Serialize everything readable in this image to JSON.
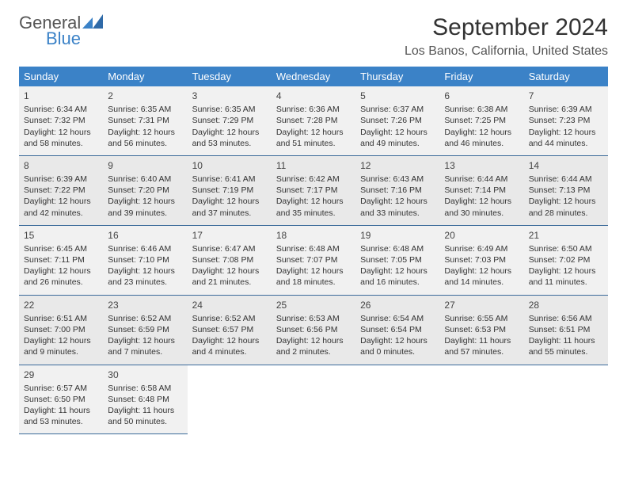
{
  "brand": {
    "top": "General",
    "bottom": "Blue",
    "mark_color": "#3b82c7"
  },
  "title": "September 2024",
  "location": "Los Banos, California, United States",
  "colors": {
    "header_bg": "#3b82c7",
    "header_text": "#ffffff",
    "row_bg_a": "#f1f1f1",
    "row_bg_b": "#e9e9e9",
    "row_border": "#3b6a9a",
    "page_bg": "#ffffff",
    "text": "#333333"
  },
  "typography": {
    "title_fontsize_pt": 22,
    "location_fontsize_pt": 12,
    "dayheader_fontsize_pt": 10,
    "cell_fontsize_pt": 8
  },
  "day_headers": [
    "Sunday",
    "Monday",
    "Tuesday",
    "Wednesday",
    "Thursday",
    "Friday",
    "Saturday"
  ],
  "weeks": [
    [
      {
        "n": "1",
        "sr": "Sunrise: 6:34 AM",
        "ss": "Sunset: 7:32 PM",
        "dl1": "Daylight: 12 hours",
        "dl2": "and 58 minutes."
      },
      {
        "n": "2",
        "sr": "Sunrise: 6:35 AM",
        "ss": "Sunset: 7:31 PM",
        "dl1": "Daylight: 12 hours",
        "dl2": "and 56 minutes."
      },
      {
        "n": "3",
        "sr": "Sunrise: 6:35 AM",
        "ss": "Sunset: 7:29 PM",
        "dl1": "Daylight: 12 hours",
        "dl2": "and 53 minutes."
      },
      {
        "n": "4",
        "sr": "Sunrise: 6:36 AM",
        "ss": "Sunset: 7:28 PM",
        "dl1": "Daylight: 12 hours",
        "dl2": "and 51 minutes."
      },
      {
        "n": "5",
        "sr": "Sunrise: 6:37 AM",
        "ss": "Sunset: 7:26 PM",
        "dl1": "Daylight: 12 hours",
        "dl2": "and 49 minutes."
      },
      {
        "n": "6",
        "sr": "Sunrise: 6:38 AM",
        "ss": "Sunset: 7:25 PM",
        "dl1": "Daylight: 12 hours",
        "dl2": "and 46 minutes."
      },
      {
        "n": "7",
        "sr": "Sunrise: 6:39 AM",
        "ss": "Sunset: 7:23 PM",
        "dl1": "Daylight: 12 hours",
        "dl2": "and 44 minutes."
      }
    ],
    [
      {
        "n": "8",
        "sr": "Sunrise: 6:39 AM",
        "ss": "Sunset: 7:22 PM",
        "dl1": "Daylight: 12 hours",
        "dl2": "and 42 minutes."
      },
      {
        "n": "9",
        "sr": "Sunrise: 6:40 AM",
        "ss": "Sunset: 7:20 PM",
        "dl1": "Daylight: 12 hours",
        "dl2": "and 39 minutes."
      },
      {
        "n": "10",
        "sr": "Sunrise: 6:41 AM",
        "ss": "Sunset: 7:19 PM",
        "dl1": "Daylight: 12 hours",
        "dl2": "and 37 minutes."
      },
      {
        "n": "11",
        "sr": "Sunrise: 6:42 AM",
        "ss": "Sunset: 7:17 PM",
        "dl1": "Daylight: 12 hours",
        "dl2": "and 35 minutes."
      },
      {
        "n": "12",
        "sr": "Sunrise: 6:43 AM",
        "ss": "Sunset: 7:16 PM",
        "dl1": "Daylight: 12 hours",
        "dl2": "and 33 minutes."
      },
      {
        "n": "13",
        "sr": "Sunrise: 6:44 AM",
        "ss": "Sunset: 7:14 PM",
        "dl1": "Daylight: 12 hours",
        "dl2": "and 30 minutes."
      },
      {
        "n": "14",
        "sr": "Sunrise: 6:44 AM",
        "ss": "Sunset: 7:13 PM",
        "dl1": "Daylight: 12 hours",
        "dl2": "and 28 minutes."
      }
    ],
    [
      {
        "n": "15",
        "sr": "Sunrise: 6:45 AM",
        "ss": "Sunset: 7:11 PM",
        "dl1": "Daylight: 12 hours",
        "dl2": "and 26 minutes."
      },
      {
        "n": "16",
        "sr": "Sunrise: 6:46 AM",
        "ss": "Sunset: 7:10 PM",
        "dl1": "Daylight: 12 hours",
        "dl2": "and 23 minutes."
      },
      {
        "n": "17",
        "sr": "Sunrise: 6:47 AM",
        "ss": "Sunset: 7:08 PM",
        "dl1": "Daylight: 12 hours",
        "dl2": "and 21 minutes."
      },
      {
        "n": "18",
        "sr": "Sunrise: 6:48 AM",
        "ss": "Sunset: 7:07 PM",
        "dl1": "Daylight: 12 hours",
        "dl2": "and 18 minutes."
      },
      {
        "n": "19",
        "sr": "Sunrise: 6:48 AM",
        "ss": "Sunset: 7:05 PM",
        "dl1": "Daylight: 12 hours",
        "dl2": "and 16 minutes."
      },
      {
        "n": "20",
        "sr": "Sunrise: 6:49 AM",
        "ss": "Sunset: 7:03 PM",
        "dl1": "Daylight: 12 hours",
        "dl2": "and 14 minutes."
      },
      {
        "n": "21",
        "sr": "Sunrise: 6:50 AM",
        "ss": "Sunset: 7:02 PM",
        "dl1": "Daylight: 12 hours",
        "dl2": "and 11 minutes."
      }
    ],
    [
      {
        "n": "22",
        "sr": "Sunrise: 6:51 AM",
        "ss": "Sunset: 7:00 PM",
        "dl1": "Daylight: 12 hours",
        "dl2": "and 9 minutes."
      },
      {
        "n": "23",
        "sr": "Sunrise: 6:52 AM",
        "ss": "Sunset: 6:59 PM",
        "dl1": "Daylight: 12 hours",
        "dl2": "and 7 minutes."
      },
      {
        "n": "24",
        "sr": "Sunrise: 6:52 AM",
        "ss": "Sunset: 6:57 PM",
        "dl1": "Daylight: 12 hours",
        "dl2": "and 4 minutes."
      },
      {
        "n": "25",
        "sr": "Sunrise: 6:53 AM",
        "ss": "Sunset: 6:56 PM",
        "dl1": "Daylight: 12 hours",
        "dl2": "and 2 minutes."
      },
      {
        "n": "26",
        "sr": "Sunrise: 6:54 AM",
        "ss": "Sunset: 6:54 PM",
        "dl1": "Daylight: 12 hours",
        "dl2": "and 0 minutes."
      },
      {
        "n": "27",
        "sr": "Sunrise: 6:55 AM",
        "ss": "Sunset: 6:53 PM",
        "dl1": "Daylight: 11 hours",
        "dl2": "and 57 minutes."
      },
      {
        "n": "28",
        "sr": "Sunrise: 6:56 AM",
        "ss": "Sunset: 6:51 PM",
        "dl1": "Daylight: 11 hours",
        "dl2": "and 55 minutes."
      }
    ],
    [
      {
        "n": "29",
        "sr": "Sunrise: 6:57 AM",
        "ss": "Sunset: 6:50 PM",
        "dl1": "Daylight: 11 hours",
        "dl2": "and 53 minutes."
      },
      {
        "n": "30",
        "sr": "Sunrise: 6:58 AM",
        "ss": "Sunset: 6:48 PM",
        "dl1": "Daylight: 11 hours",
        "dl2": "and 50 minutes."
      },
      null,
      null,
      null,
      null,
      null
    ]
  ]
}
